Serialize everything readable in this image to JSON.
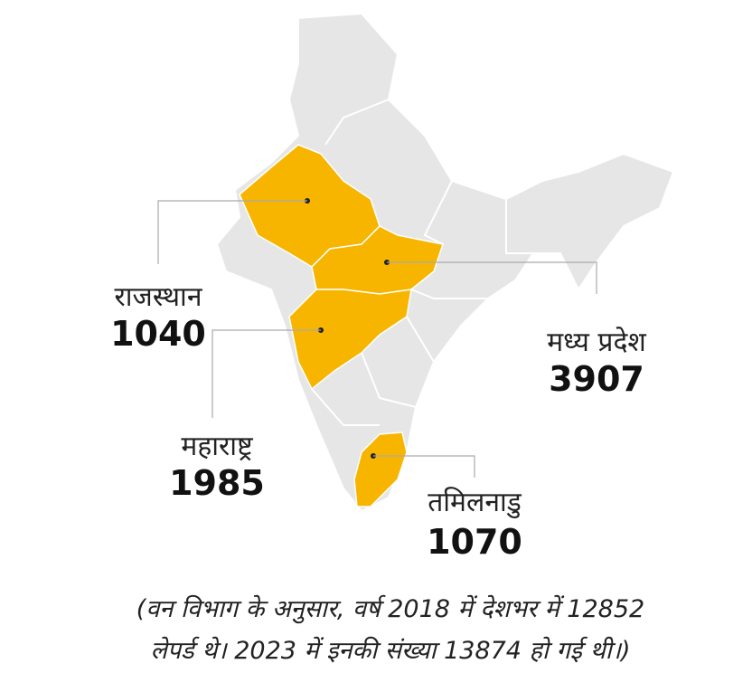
{
  "map": {
    "regions": [
      {
        "name": "राजस्थान",
        "value": 1040
      },
      {
        "name": "मध्य प्रदेश",
        "value": 3907
      },
      {
        "name": "महाराष्ट्र",
        "value": 1985
      },
      {
        "name": "तमिलनाडु",
        "value": 1070
      }
    ]
  },
  "caption": [
    "(वन विभाग के अनुसार, वर्ष 2018 में देशभर में 12852",
    "लेपर्ड थे। 2023 में इनकी संख्या 13874 हो गई थी।)"
  ]
}
